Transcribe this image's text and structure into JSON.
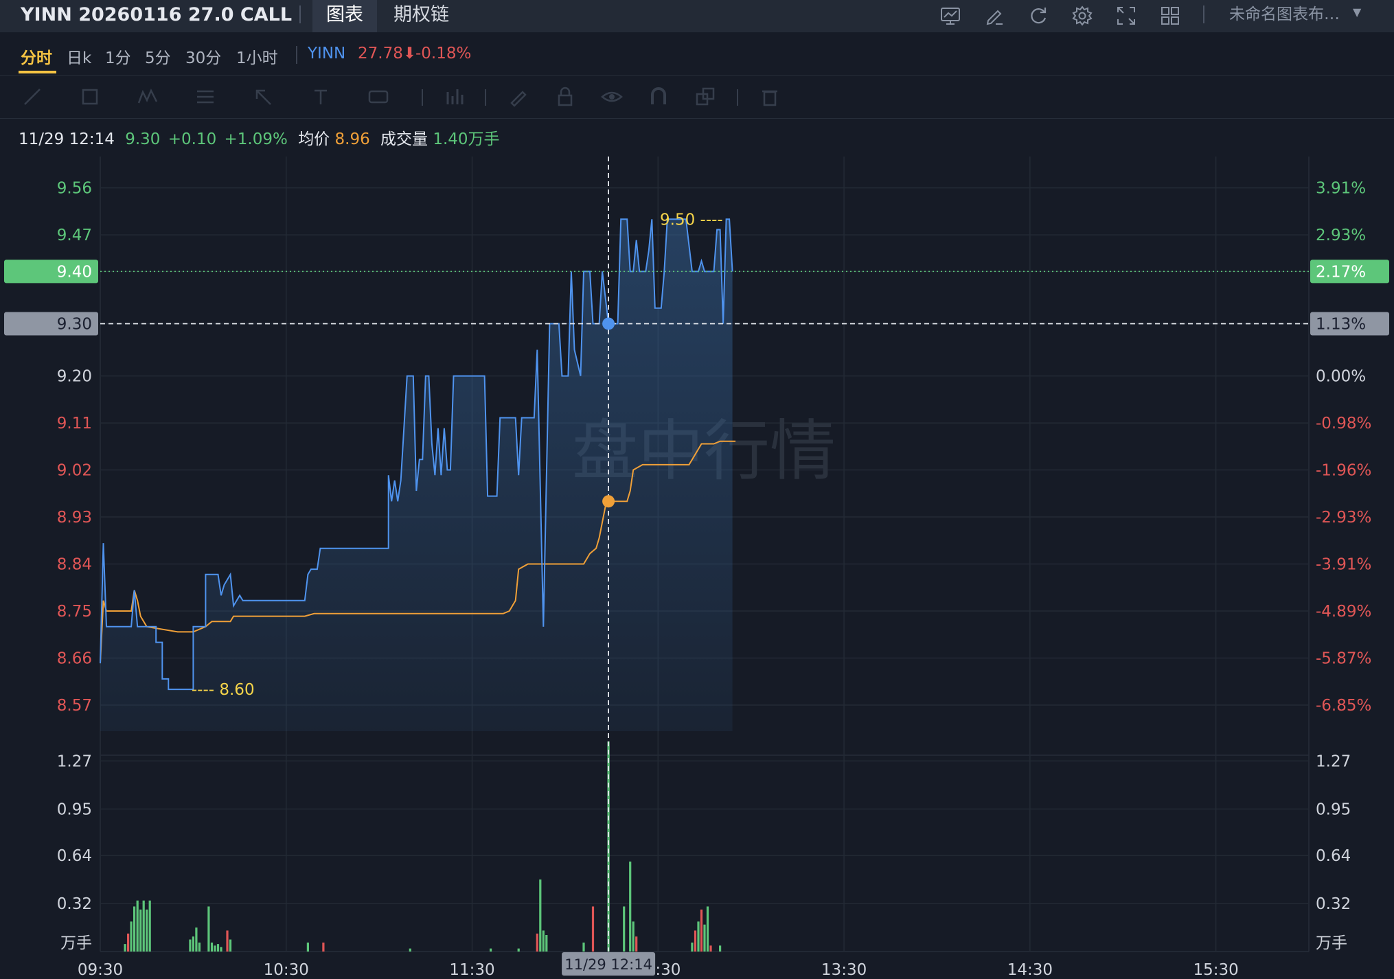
{
  "header": {
    "title": "YINN 20260116 27.0 CALL",
    "tabs": [
      {
        "label": "图表",
        "active": true
      },
      {
        "label": "期权链",
        "active": false
      }
    ],
    "icons": [
      "monitor-chart-icon",
      "edit-icon",
      "refresh-icon",
      "settings-gear-icon",
      "fullscreen-icon",
      "grid-layout-icon"
    ],
    "layout_name": "未命名图表布…"
  },
  "periods": [
    {
      "label": "分时",
      "active": true
    },
    {
      "label": "日k"
    },
    {
      "label": "1分"
    },
    {
      "label": "5分"
    },
    {
      "label": "30分"
    },
    {
      "label": "1小时"
    }
  ],
  "underlying": {
    "symbol": "YINN",
    "price": "27.78",
    "change_pct": "-0.18%",
    "arrow": "⬇"
  },
  "drawing_tools": [
    "line-tool-icon",
    "rectangle-tool-icon",
    "pattern-tool-icon",
    "fib-tool-icon",
    "arrow-tool-icon",
    "text-tool-icon",
    "label-tool-icon",
    "measure-tool-icon",
    "brush-tool-icon",
    "lock-icon",
    "eye-icon",
    "magnet-icon",
    "clone-icon",
    "trash-icon"
  ],
  "info": {
    "datetime": "11/29 12:14",
    "price": "9.30",
    "change": "+0.10",
    "change_pct": "+1.09%",
    "avg_label": "均价",
    "avg": "8.96",
    "vol_label": "成交量",
    "vol": "1.40万手"
  },
  "watermark": "盘中行情",
  "chart_data": {
    "type": "line",
    "x_ticks": [
      "09:30",
      "10:30",
      "11:30",
      "12:30",
      "13:30",
      "14:30",
      "15:30"
    ],
    "session": {
      "start": "09:30",
      "end": "16:00"
    },
    "prev_close": 9.2,
    "price_axis": {
      "ylim": [
        8.52,
        9.62
      ],
      "ticks": [
        9.56,
        9.47,
        9.4,
        9.3,
        9.2,
        9.11,
        9.02,
        8.93,
        8.84,
        8.75,
        8.66,
        8.57
      ],
      "pct_labels": [
        "3.91%",
        "2.93%",
        "2.17%",
        "1.13%",
        "0.00%",
        "-0.98%",
        "-1.96%",
        "-2.93%",
        "-3.91%",
        "-4.89%",
        "-5.87%",
        "-6.85%"
      ]
    },
    "current_price": {
      "value": 9.4,
      "label": "9.40",
      "pct": "2.17%"
    },
    "crosshair": {
      "time": "12:14",
      "label": "11/29 12:14",
      "price": 9.3,
      "price_label": "9.30",
      "pct_label": "1.13%",
      "avg": 8.96
    },
    "annotations": [
      {
        "text": "9.50",
        "price": 9.5,
        "time": "12:45",
        "kind": "high"
      },
      {
        "text": "8.60",
        "price": 8.6,
        "time": "09:59",
        "kind": "low"
      }
    ],
    "volume_axis": {
      "unit": "万手",
      "ylim": [
        0,
        1.4
      ],
      "ticks": [
        1.27,
        0.95,
        0.64,
        0.32
      ]
    },
    "price_series": [
      [
        "09:30",
        8.65
      ],
      [
        "09:31",
        8.88
      ],
      [
        "09:32",
        8.72
      ],
      [
        "09:35",
        8.72
      ],
      [
        "09:37",
        8.72
      ],
      [
        "09:40",
        8.72
      ],
      [
        "09:41",
        8.79
      ],
      [
        "09:42",
        8.72
      ],
      [
        "09:48",
        8.72
      ],
      [
        "09:48",
        8.69
      ],
      [
        "09:50",
        8.69
      ],
      [
        "09:50",
        8.62
      ],
      [
        "09:52",
        8.62
      ],
      [
        "09:52",
        8.6
      ],
      [
        "09:56",
        8.6
      ],
      [
        "10:00",
        8.6
      ],
      [
        "10:00",
        8.72
      ],
      [
        "10:04",
        8.72
      ],
      [
        "10:04",
        8.82
      ],
      [
        "10:08",
        8.82
      ],
      [
        "10:09",
        8.78
      ],
      [
        "10:10",
        8.8
      ],
      [
        "10:12",
        8.82
      ],
      [
        "10:13",
        8.76
      ],
      [
        "10:15",
        8.78
      ],
      [
        "10:16",
        8.77
      ],
      [
        "10:36",
        8.77
      ],
      [
        "10:37",
        8.82
      ],
      [
        "10:38",
        8.83
      ],
      [
        "10:40",
        8.83
      ],
      [
        "10:41",
        8.87
      ],
      [
        "10:48",
        8.87
      ],
      [
        "10:55",
        8.87
      ],
      [
        "11:03",
        8.87
      ],
      [
        "11:03",
        9.01
      ],
      [
        "11:04",
        8.96
      ],
      [
        "11:05",
        9.0
      ],
      [
        "11:06",
        8.96
      ],
      [
        "11:07",
        9.0
      ],
      [
        "11:09",
        9.2
      ],
      [
        "11:11",
        9.2
      ],
      [
        "11:12",
        8.98
      ],
      [
        "11:13",
        9.04
      ],
      [
        "11:14",
        9.04
      ],
      [
        "11:15",
        9.2
      ],
      [
        "11:16",
        9.2
      ],
      [
        "11:17",
        9.07
      ],
      [
        "11:18",
        9.01
      ],
      [
        "11:19",
        9.1
      ],
      [
        "11:20",
        9.01
      ],
      [
        "11:21",
        9.1
      ],
      [
        "11:22",
        9.02
      ],
      [
        "11:23",
        9.02
      ],
      [
        "11:24",
        9.2
      ],
      [
        "11:30",
        9.2
      ],
      [
        "11:34",
        9.2
      ],
      [
        "11:35",
        8.97
      ],
      [
        "11:38",
        8.97
      ],
      [
        "11:39",
        9.12
      ],
      [
        "11:44",
        9.12
      ],
      [
        "11:45",
        9.01
      ],
      [
        "11:46",
        9.12
      ],
      [
        "11:50",
        9.12
      ],
      [
        "11:51",
        9.25
      ],
      [
        "11:53",
        8.72
      ],
      [
        "11:55",
        9.3
      ],
      [
        "11:58",
        9.3
      ],
      [
        "11:59",
        9.2
      ],
      [
        "12:01",
        9.2
      ],
      [
        "12:02",
        9.4
      ],
      [
        "12:03",
        9.25
      ],
      [
        "12:05",
        9.2
      ],
      [
        "12:06",
        9.4
      ],
      [
        "12:08",
        9.4
      ],
      [
        "12:09",
        9.3
      ],
      [
        "12:11",
        9.3
      ],
      [
        "12:12",
        9.4
      ],
      [
        "12:14",
        9.3
      ],
      [
        "12:17",
        9.3
      ],
      [
        "12:18",
        9.5
      ],
      [
        "12:20",
        9.5
      ],
      [
        "12:21",
        9.4
      ],
      [
        "12:22",
        9.4
      ],
      [
        "12:23",
        9.46
      ],
      [
        "12:24",
        9.4
      ],
      [
        "12:26",
        9.4
      ],
      [
        "12:27",
        9.44
      ],
      [
        "12:28",
        9.5
      ],
      [
        "12:29",
        9.33
      ],
      [
        "12:31",
        9.33
      ],
      [
        "12:32",
        9.4
      ],
      [
        "12:33",
        9.5
      ],
      [
        "12:39",
        9.5
      ],
      [
        "12:40",
        9.45
      ],
      [
        "12:41",
        9.4
      ],
      [
        "12:43",
        9.4
      ],
      [
        "12:44",
        9.42
      ],
      [
        "12:45",
        9.4
      ],
      [
        "12:48",
        9.4
      ],
      [
        "12:49",
        9.48
      ],
      [
        "12:50",
        9.48
      ],
      [
        "12:51",
        9.3
      ],
      [
        "12:52",
        9.5
      ],
      [
        "12:53",
        9.5
      ],
      [
        "12:54",
        9.4
      ]
    ],
    "avg_series": [
      [
        "09:30",
        8.65
      ],
      [
        "09:31",
        8.77
      ],
      [
        "09:32",
        8.75
      ],
      [
        "09:40",
        8.75
      ],
      [
        "09:41",
        8.79
      ],
      [
        "09:42",
        8.77
      ],
      [
        "09:43",
        8.74
      ],
      [
        "09:45",
        8.72
      ],
      [
        "09:55",
        8.71
      ],
      [
        "10:00",
        8.71
      ],
      [
        "10:04",
        8.72
      ],
      [
        "10:06",
        8.73
      ],
      [
        "10:12",
        8.73
      ],
      [
        "10:13",
        8.74
      ],
      [
        "10:36",
        8.74
      ],
      [
        "10:39",
        8.745
      ],
      [
        "11:40",
        8.745
      ],
      [
        "11:42",
        8.75
      ],
      [
        "11:44",
        8.77
      ],
      [
        "11:45",
        8.83
      ],
      [
        "11:48",
        8.84
      ],
      [
        "12:06",
        8.84
      ],
      [
        "12:08",
        8.86
      ],
      [
        "12:10",
        8.87
      ],
      [
        "12:11",
        8.89
      ],
      [
        "12:13",
        8.95
      ],
      [
        "12:14",
        8.96
      ],
      [
        "12:20",
        8.96
      ],
      [
        "12:21",
        8.98
      ],
      [
        "12:22",
        9.02
      ],
      [
        "12:25",
        9.03
      ],
      [
        "12:40",
        9.03
      ],
      [
        "12:42",
        9.05
      ],
      [
        "12:44",
        9.07
      ],
      [
        "12:48",
        9.07
      ],
      [
        "12:50",
        9.075
      ],
      [
        "12:55",
        9.075
      ]
    ],
    "volume_bars": [
      [
        "09:38",
        0.05,
        "green"
      ],
      [
        "09:39",
        0.12,
        "red"
      ],
      [
        "09:40",
        0.2,
        "green"
      ],
      [
        "09:41",
        0.3,
        "green"
      ],
      [
        "09:42",
        0.34,
        "green"
      ],
      [
        "09:43",
        0.28,
        "green"
      ],
      [
        "09:44",
        0.34,
        "green"
      ],
      [
        "09:45",
        0.28,
        "green"
      ],
      [
        "09:46",
        0.34,
        "green"
      ],
      [
        "09:59",
        0.08,
        "green"
      ],
      [
        "10:00",
        0.1,
        "green"
      ],
      [
        "10:01",
        0.16,
        "green"
      ],
      [
        "10:02",
        0.06,
        "green"
      ],
      [
        "10:05",
        0.3,
        "green"
      ],
      [
        "10:06",
        0.06,
        "green"
      ],
      [
        "10:07",
        0.04,
        "green"
      ],
      [
        "10:08",
        0.05,
        "green"
      ],
      [
        "10:09",
        0.03,
        "green"
      ],
      [
        "10:11",
        0.14,
        "red"
      ],
      [
        "10:12",
        0.08,
        "green"
      ],
      [
        "10:37",
        0.06,
        "green"
      ],
      [
        "10:42",
        0.06,
        "red"
      ],
      [
        "11:10",
        0.02,
        "green"
      ],
      [
        "11:36",
        0.02,
        "green"
      ],
      [
        "11:45",
        0.02,
        "green"
      ],
      [
        "11:51",
        0.12,
        "red"
      ],
      [
        "11:52",
        0.48,
        "green"
      ],
      [
        "11:53",
        0.14,
        "green"
      ],
      [
        "11:54",
        0.11,
        "green"
      ],
      [
        "12:06",
        0.06,
        "green"
      ],
      [
        "12:09",
        0.3,
        "red"
      ],
      [
        "12:14",
        1.4,
        "green"
      ],
      [
        "12:19",
        0.3,
        "green"
      ],
      [
        "12:21",
        0.6,
        "green"
      ],
      [
        "12:22",
        0.2,
        "green"
      ],
      [
        "12:23",
        0.1,
        "red"
      ],
      [
        "12:41",
        0.06,
        "green"
      ],
      [
        "12:42",
        0.14,
        "red"
      ],
      [
        "12:43",
        0.2,
        "green"
      ],
      [
        "12:44",
        0.28,
        "red"
      ],
      [
        "12:45",
        0.18,
        "green"
      ],
      [
        "12:46",
        0.3,
        "green"
      ],
      [
        "12:47",
        0.04,
        "red"
      ],
      [
        "12:50",
        0.04,
        "green"
      ]
    ],
    "colors": {
      "price": "#4f93ee",
      "avg": "#f0a038",
      "up": "#5dc67a",
      "down": "#e05656",
      "annotation": "#f5d44a",
      "neutral": "#d0d4dc"
    }
  }
}
